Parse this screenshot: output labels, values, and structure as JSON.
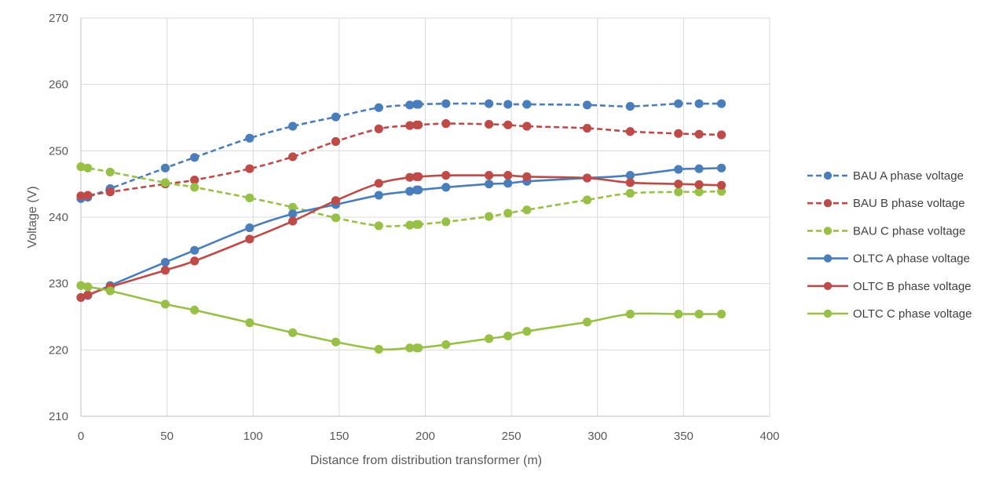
{
  "chart_data": {
    "type": "line",
    "title": "",
    "xlabel": "Distance from distribution transformer (m)",
    "ylabel": "Voltage (V)",
    "xlim": [
      0,
      400
    ],
    "ylim": [
      210,
      270
    ],
    "xticks": [
      0,
      50,
      100,
      150,
      200,
      250,
      300,
      350,
      400
    ],
    "yticks": [
      210,
      220,
      230,
      240,
      250,
      260,
      270
    ],
    "grid": true,
    "legend_position": "right",
    "x": [
      0,
      4,
      17,
      49,
      66,
      98,
      123,
      148,
      173,
      191,
      195,
      196,
      212,
      237,
      248,
      259,
      294,
      319,
      347,
      359,
      372
    ],
    "series": [
      {
        "name": "BAU A phase voltage",
        "color": "#4a7ebb",
        "dashed": true,
        "values": [
          242.8,
          243.0,
          244.3,
          247.4,
          249.0,
          251.9,
          253.7,
          255.1,
          256.5,
          256.9,
          257.0,
          257.0,
          257.1,
          257.1,
          257.0,
          257.0,
          256.9,
          256.7,
          257.1,
          257.1,
          257.1
        ]
      },
      {
        "name": "BAU B phase voltage",
        "color": "#be4b48",
        "dashed": true,
        "values": [
          243.2,
          243.3,
          243.8,
          245.0,
          245.6,
          247.3,
          249.1,
          251.4,
          253.3,
          253.8,
          253.9,
          253.9,
          254.1,
          254.0,
          253.9,
          253.7,
          253.4,
          252.9,
          252.6,
          252.5,
          252.4
        ]
      },
      {
        "name": "BAU C phase voltage",
        "color": "#98c046",
        "dashed": true,
        "values": [
          247.6,
          247.4,
          246.8,
          245.2,
          244.5,
          242.9,
          241.5,
          239.9,
          238.7,
          238.8,
          238.9,
          238.9,
          239.3,
          240.1,
          240.6,
          241.1,
          242.6,
          243.6,
          243.8,
          243.8,
          243.9
        ]
      },
      {
        "name": "OLTC A phase voltage",
        "color": "#4a7ebb",
        "dashed": false,
        "values": [
          227.9,
          228.2,
          229.7,
          233.2,
          235.0,
          238.4,
          240.5,
          241.9,
          243.3,
          243.9,
          244.1,
          244.1,
          244.5,
          245.0,
          245.1,
          245.4,
          245.9,
          246.3,
          247.2,
          247.3,
          247.4
        ]
      },
      {
        "name": "OLTC B phase voltage",
        "color": "#be4b48",
        "dashed": false,
        "values": [
          227.9,
          228.3,
          229.5,
          232.0,
          233.4,
          236.7,
          239.4,
          242.5,
          245.1,
          246.0,
          246.1,
          246.1,
          246.3,
          246.3,
          246.3,
          246.1,
          245.9,
          245.2,
          245.0,
          244.9,
          244.8
        ]
      },
      {
        "name": "OLTC C phase voltage",
        "color": "#98c046",
        "dashed": false,
        "values": [
          229.7,
          229.5,
          228.9,
          226.9,
          226.0,
          224.1,
          222.6,
          221.2,
          220.1,
          220.3,
          220.3,
          220.3,
          220.8,
          221.7,
          222.1,
          222.8,
          224.2,
          225.4,
          225.4,
          225.4,
          225.4
        ]
      }
    ]
  }
}
